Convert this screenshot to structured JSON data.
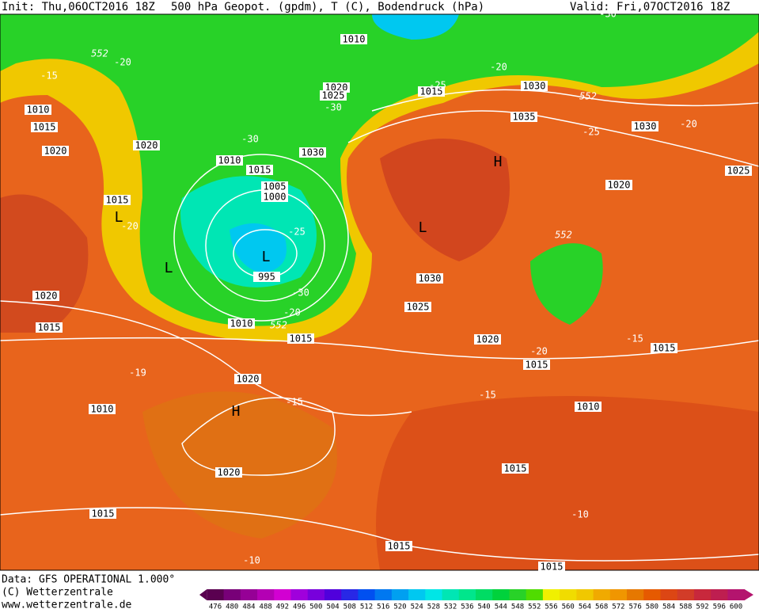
{
  "header": {
    "init": "Init: Thu,06OCT2016 18Z",
    "title": "500 hPa Geopot. (gpdm), T (C), Bodendruck (hPa)",
    "valid": "Valid: Fri,07OCT2016 18Z"
  },
  "footer": {
    "data": "Data: GFS OPERATIONAL 1.000°",
    "copyright": "(C) Wetterzentrale",
    "url": "www.wetterzentrale.de"
  },
  "map": {
    "pressure_labels": [
      1010,
      1010,
      1015,
      1020,
      1020,
      1015,
      1010,
      1015,
      1005,
      1000,
      995,
      1010,
      1015,
      1020,
      1015,
      1010,
      1020,
      1020,
      1015,
      1015,
      1015,
      1015,
      1010,
      1015,
      1020,
      1025,
      1030,
      1030,
      1020,
      1025,
      1015,
      1030,
      1035,
      1030,
      1025,
      1020,
      1015
    ],
    "temperature_labels": [
      -20,
      -15,
      -20,
      -25,
      -30,
      -30,
      -25,
      -20,
      -20,
      -25,
      -30,
      -20,
      -19,
      -15,
      -20,
      -15,
      -15,
      -10,
      -10,
      -30
    ],
    "geopotential_labels": [
      552,
      552,
      552,
      552
    ],
    "centers": [
      "L",
      "L",
      "L",
      "L",
      "H",
      "H"
    ]
  },
  "scale": {
    "values": [
      476,
      480,
      484,
      488,
      492,
      496,
      500,
      504,
      508,
      512,
      516,
      520,
      524,
      528,
      532,
      536,
      540,
      544,
      548,
      552,
      556,
      560,
      564,
      568,
      572,
      576,
      580,
      584,
      588,
      592,
      596,
      600
    ],
    "colors": [
      "#5a0050",
      "#780078",
      "#960096",
      "#b400b4",
      "#d200d2",
      "#a000dc",
      "#7800dc",
      "#5000dc",
      "#2828e6",
      "#0050f0",
      "#0078f0",
      "#00a0f0",
      "#00c8f0",
      "#00e6e6",
      "#00e6b4",
      "#00e68c",
      "#00dc64",
      "#00d23c",
      "#28d228",
      "#50dc00",
      "#f0f000",
      "#f0dc00",
      "#f0c800",
      "#f0aa00",
      "#f09600",
      "#e67800",
      "#e65a00",
      "#dc4614",
      "#d23c28",
      "#c8283c",
      "#be1e50",
      "#b4146e"
    ]
  }
}
